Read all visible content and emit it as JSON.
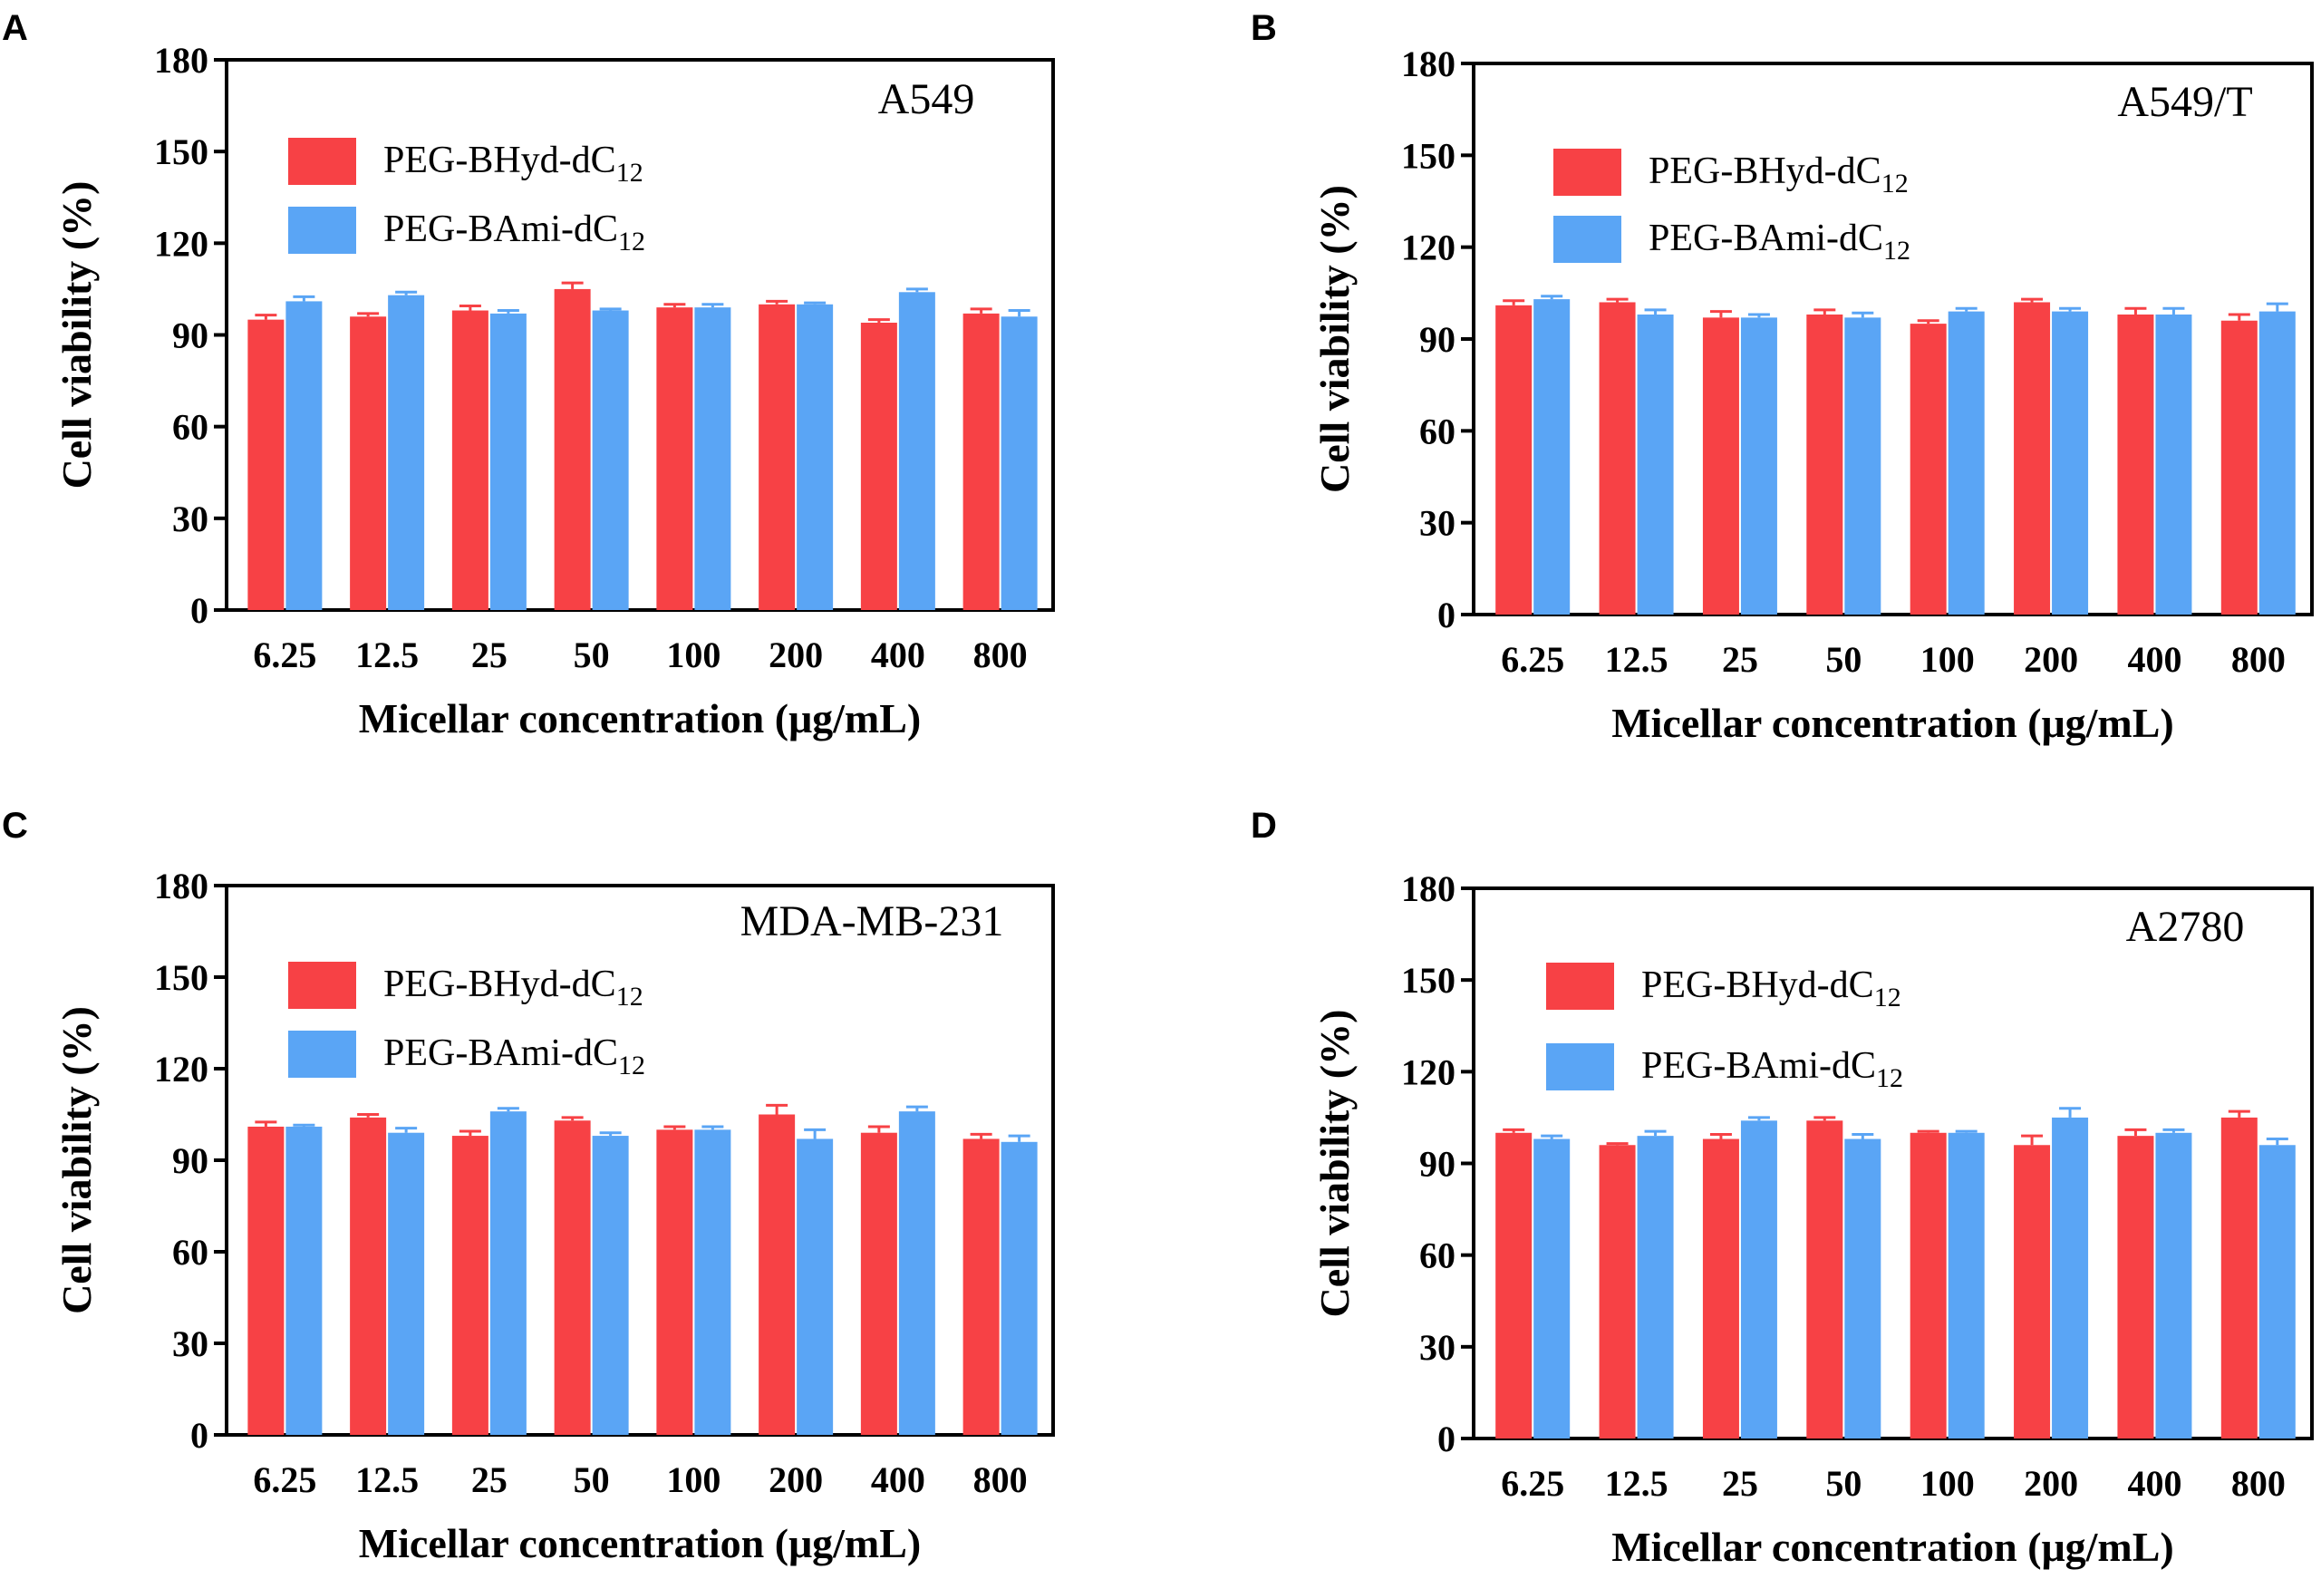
{
  "chart_data": [
    {
      "panel": "A",
      "type": "bar",
      "title": "A549",
      "xlabel": "Micellar concentration (μg/mL)",
      "ylabel": "Cell viability (%)",
      "ylim": [
        0,
        180
      ],
      "yticks": [
        "0",
        "30",
        "60",
        "90",
        "120",
        "150",
        "180"
      ],
      "categories": [
        "6.25",
        "12.5",
        "25",
        "50",
        "100",
        "200",
        "400",
        "800"
      ],
      "series": [
        {
          "name": "PEG-BHyd-dC",
          "sub": "12",
          "color": "#f74145",
          "values": [
            95,
            96,
            98,
            105,
            99,
            100,
            94,
            97
          ],
          "errors": [
            1.5,
            1,
            1.5,
            2,
            1,
            1,
            1,
            1.5
          ]
        },
        {
          "name": "PEG-BAmi-dC",
          "sub": "12",
          "color": "#5aa5f5",
          "values": [
            101,
            103,
            97,
            98,
            99,
            100,
            104,
            96
          ],
          "errors": [
            1.5,
            1,
            1,
            0.5,
            1,
            0.5,
            1,
            2
          ]
        }
      ]
    },
    {
      "panel": "B",
      "type": "bar",
      "title": "A549/T",
      "xlabel": "Micellar concentration (μg/mL)",
      "ylabel": "Cell viability (%)",
      "ylim": [
        0,
        180
      ],
      "yticks": [
        "0",
        "30",
        "60",
        "90",
        "120",
        "150",
        "180"
      ],
      "categories": [
        "6.25",
        "12.5",
        "25",
        "50",
        "100",
        "200",
        "400",
        "800"
      ],
      "series": [
        {
          "name": "PEG-BHyd-dC",
          "sub": "12",
          "color": "#f74145",
          "values": [
            101,
            102,
            97,
            98,
            95,
            102,
            98,
            96
          ],
          "errors": [
            1.5,
            1,
            2,
            1.5,
            1,
            1,
            2,
            2
          ]
        },
        {
          "name": "PEG-BAmi-dC",
          "sub": "12",
          "color": "#5aa5f5",
          "values": [
            103,
            98,
            97,
            97,
            99,
            99,
            98,
            99
          ],
          "errors": [
            1,
            1.5,
            1,
            1.5,
            1,
            1,
            2,
            2.5
          ]
        }
      ]
    },
    {
      "panel": "C",
      "type": "bar",
      "title": "MDA-MB-231",
      "xlabel": "Micellar concentration (μg/mL)",
      "ylabel": "Cell viability (%)",
      "ylim": [
        0,
        180
      ],
      "yticks": [
        "0",
        "30",
        "60",
        "90",
        "120",
        "150",
        "180"
      ],
      "categories": [
        "6.25",
        "12.5",
        "25",
        "50",
        "100",
        "200",
        "400",
        "800"
      ],
      "series": [
        {
          "name": "PEG-BHyd-dC",
          "sub": "12",
          "color": "#f74145",
          "values": [
            101,
            104,
            98,
            103,
            100,
            105,
            99,
            97
          ],
          "errors": [
            1.5,
            1,
            1.5,
            1,
            1,
            3,
            2,
            1.5
          ]
        },
        {
          "name": "PEG-BAmi-dC",
          "sub": "12",
          "color": "#5aa5f5",
          "values": [
            101,
            99,
            106,
            98,
            100,
            97,
            106,
            96
          ],
          "errors": [
            0.5,
            1.5,
            1,
            1,
            1,
            3,
            1.5,
            2
          ]
        }
      ]
    },
    {
      "panel": "D",
      "type": "bar",
      "title": "A2780",
      "xlabel": "Micellar concentration (μg/mL)",
      "ylabel": "Cell viability (%)",
      "ylim": [
        0,
        180
      ],
      "yticks": [
        "0",
        "30",
        "60",
        "90",
        "120",
        "150",
        "180"
      ],
      "categories": [
        "6.25",
        "12.5",
        "25",
        "50",
        "100",
        "200",
        "400",
        "800"
      ],
      "series": [
        {
          "name": "PEG-BHyd-dC",
          "sub": "12",
          "color": "#f74145",
          "values": [
            100,
            96,
            98,
            104,
            100,
            96,
            99,
            105
          ],
          "errors": [
            1,
            0.5,
            1.5,
            1,
            0.5,
            3,
            2,
            2
          ]
        },
        {
          "name": "PEG-BAmi-dC",
          "sub": "12",
          "color": "#5aa5f5",
          "values": [
            98,
            99,
            104,
            98,
            100,
            105,
            100,
            96
          ],
          "errors": [
            1,
            1.5,
            1,
            1.5,
            0.5,
            3,
            1,
            2
          ]
        }
      ]
    }
  ]
}
